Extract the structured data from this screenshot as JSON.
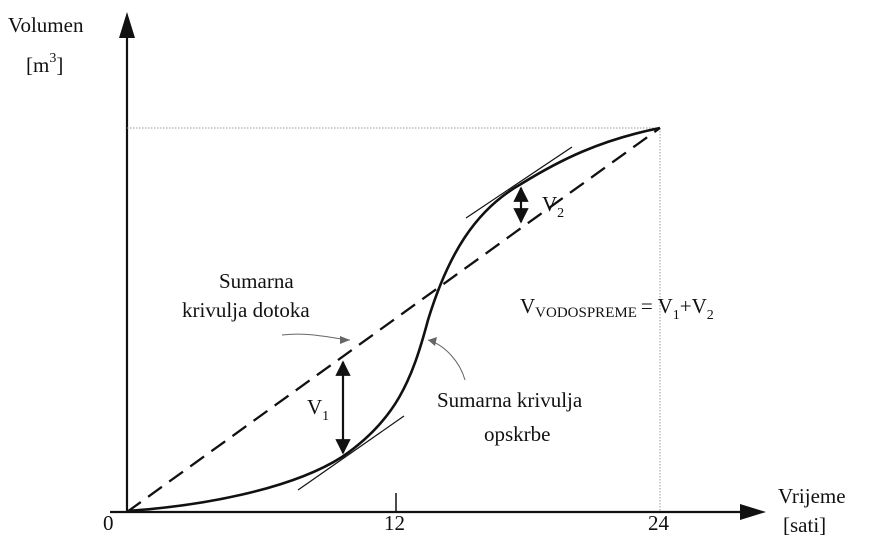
{
  "y_axis": {
    "label": "Volumen",
    "unit_base": "[m",
    "unit_sup": "3",
    "unit_close": "]"
  },
  "x_axis": {
    "label": "Vrijeme",
    "unit": "[sati]",
    "ticks": [
      "0",
      "12",
      "24"
    ]
  },
  "curves": {
    "inflow_label_line1": "Sumarna",
    "inflow_label_line2": "krivulja dotoka",
    "supply_label_line1": "Sumarna krivulja",
    "supply_label_line2": "opskrbe"
  },
  "volumes": {
    "v1_main": "V",
    "v1_sub": "1",
    "v2_main": "V",
    "v2_sub": "2"
  },
  "formula": {
    "lhs_main": "V",
    "lhs_sub": "VODOSPREME",
    "rhs": "= V",
    "rhs_sub1": "1",
    "rhs_plus": "+V",
    "rhs_sub2": "2"
  },
  "colors": {
    "ink": "#111111",
    "guide": "#9a9a9a"
  }
}
